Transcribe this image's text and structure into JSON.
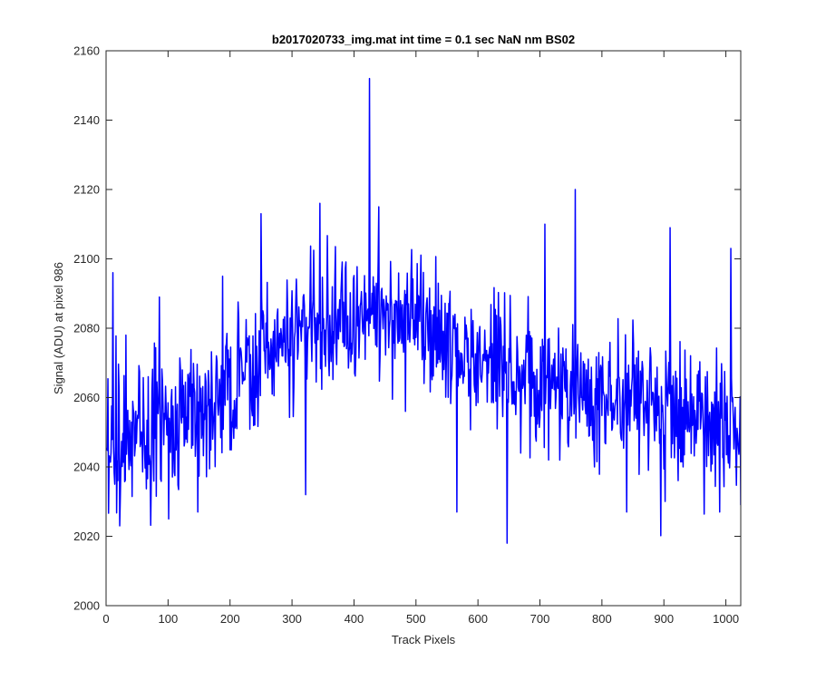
{
  "chart_data": {
    "type": "line",
    "title": "b2017020733_img.mat int time = 0.1 sec  NaN nm BS02",
    "xlabel": "Track Pixels",
    "ylabel": "Signal (ADU) at pixel 986",
    "xlim": [
      0,
      1024
    ],
    "ylim": [
      2000,
      2160
    ],
    "xticks": [
      0,
      100,
      200,
      300,
      400,
      500,
      600,
      700,
      800,
      900,
      1000
    ],
    "yticks": [
      2000,
      2020,
      2040,
      2060,
      2080,
      2100,
      2120,
      2140,
      2160
    ],
    "grid": false,
    "legend": "none",
    "series": [
      {
        "color": "#0000ff",
        "x_start": 1,
        "x_step": 1,
        "points": 1024,
        "envelope": [
          [
            0,
            2048
          ],
          [
            50,
            2050
          ],
          [
            100,
            2052
          ],
          [
            150,
            2057
          ],
          [
            200,
            2062
          ],
          [
            250,
            2071
          ],
          [
            300,
            2078
          ],
          [
            350,
            2081
          ],
          [
            400,
            2083
          ],
          [
            450,
            2082
          ],
          [
            500,
            2080
          ],
          [
            550,
            2076
          ],
          [
            600,
            2070
          ],
          [
            650,
            2066
          ],
          [
            700,
            2063
          ],
          [
            750,
            2063
          ],
          [
            800,
            2060
          ],
          [
            850,
            2058
          ],
          [
            900,
            2056
          ],
          [
            950,
            2054
          ],
          [
            1000,
            2052
          ],
          [
            1024,
            2050
          ]
        ],
        "noise_amplitude": 13,
        "features": [
          {
            "x": 11,
            "y": 2096
          },
          {
            "x": 22,
            "y": 2023
          },
          {
            "x": 32,
            "y": 2078
          },
          {
            "x": 86,
            "y": 2089
          },
          {
            "x": 148,
            "y": 2027
          },
          {
            "x": 188,
            "y": 2095
          },
          {
            "x": 250,
            "y": 2113
          },
          {
            "x": 322,
            "y": 2032
          },
          {
            "x": 345,
            "y": 2116
          },
          {
            "x": 425,
            "y": 2152
          },
          {
            "x": 440,
            "y": 2115
          },
          {
            "x": 566,
            "y": 2027
          },
          {
            "x": 647,
            "y": 2018
          },
          {
            "x": 708,
            "y": 2110
          },
          {
            "x": 757,
            "y": 2120
          },
          {
            "x": 840,
            "y": 2027
          },
          {
            "x": 910,
            "y": 2109
          },
          {
            "x": 990,
            "y": 2027
          },
          {
            "x": 1008,
            "y": 2103
          },
          {
            "x": 1024,
            "y": 2029
          }
        ]
      }
    ]
  }
}
